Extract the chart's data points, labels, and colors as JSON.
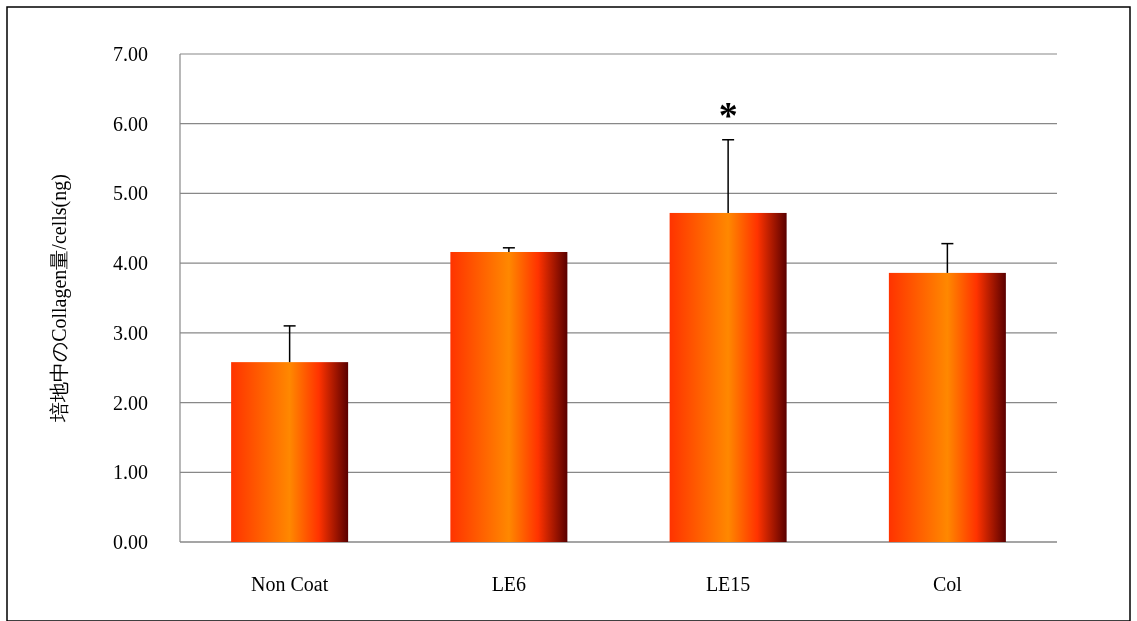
{
  "chart_data": {
    "type": "bar",
    "ylabel": "培地中のCollagen量/cells(ng)",
    "categories": [
      "Non Coat",
      "LE6",
      "LE15",
      "Col"
    ],
    "values": [
      2.58,
      4.16,
      4.72,
      3.86
    ],
    "errors": [
      [
        2.58,
        3.1
      ],
      [
        4.16,
        4.22
      ],
      [
        4.72,
        5.77
      ],
      [
        3.86,
        4.28
      ]
    ],
    "color": "#ff3300",
    "ylim": [
      0,
      7
    ],
    "yticks": [
      {
        "value": 0,
        "label": "0.00"
      },
      {
        "value": 1,
        "label": "1.00"
      },
      {
        "value": 2,
        "label": "2.00"
      },
      {
        "value": 3,
        "label": "3.00"
      },
      {
        "value": 4,
        "label": "4.00"
      },
      {
        "value": 5,
        "label": "5.00"
      },
      {
        "value": 6,
        "label": "6.00"
      },
      {
        "value": 7,
        "label": "7.00"
      }
    ],
    "grid": "y",
    "annotations": [
      "*"
    ]
  }
}
